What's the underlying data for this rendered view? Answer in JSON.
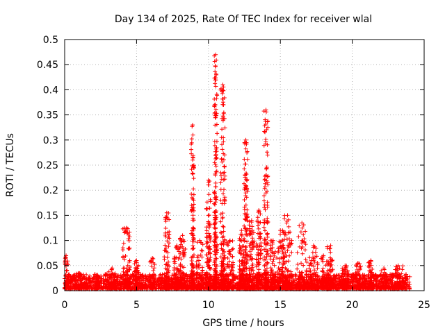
{
  "chart_data": {
    "type": "scatter",
    "title": "Day 134 of 2025, Rate Of TEC Index for receiver wlal",
    "xlabel": "GPS time / hours",
    "ylabel": "ROTI / TECUs",
    "xlim": [
      0,
      25
    ],
    "ylim": [
      0,
      0.5
    ],
    "xticks": [
      0,
      5,
      10,
      15,
      20,
      25
    ],
    "xtick_labels": [
      "0",
      "5",
      "10",
      "15",
      "20",
      "25"
    ],
    "yticks": [
      0,
      0.05,
      0.1,
      0.15,
      0.2,
      0.25,
      0.3,
      0.35,
      0.4,
      0.45,
      0.5
    ],
    "ytick_labels": [
      "0",
      "0.05",
      "0.1",
      "0.15",
      "0.2",
      "0.25",
      "0.3",
      "0.35",
      "0.4",
      "0.45",
      "0.5"
    ],
    "grid": true,
    "marker": "plus",
    "series_color": "#ff0000",
    "base_range": [
      0.0,
      24.0
    ],
    "baseline_max": 0.03,
    "clusters": [
      {
        "x": 0.1,
        "width": 0.3,
        "ymax": 0.07
      },
      {
        "x": 1.0,
        "width": 0.6,
        "ymax": 0.035
      },
      {
        "x": 2.3,
        "width": 0.3,
        "ymax": 0.03
      },
      {
        "x": 3.3,
        "width": 0.5,
        "ymax": 0.045
      },
      {
        "x": 4.3,
        "width": 0.5,
        "ymax": 0.125
      },
      {
        "x": 5.0,
        "width": 0.3,
        "ymax": 0.06
      },
      {
        "x": 6.1,
        "width": 0.4,
        "ymax": 0.065
      },
      {
        "x": 7.1,
        "width": 0.35,
        "ymax": 0.155
      },
      {
        "x": 7.8,
        "width": 0.4,
        "ymax": 0.09
      },
      {
        "x": 8.2,
        "width": 0.4,
        "ymax": 0.11
      },
      {
        "x": 8.9,
        "width": 0.2,
        "ymax": 0.33
      },
      {
        "x": 9.4,
        "width": 0.5,
        "ymax": 0.1
      },
      {
        "x": 10.0,
        "width": 0.3,
        "ymax": 0.22
      },
      {
        "x": 10.5,
        "width": 0.2,
        "ymax": 0.47
      },
      {
        "x": 11.0,
        "width": 0.3,
        "ymax": 0.41
      },
      {
        "x": 11.5,
        "width": 0.5,
        "ymax": 0.1
      },
      {
        "x": 12.3,
        "width": 0.3,
        "ymax": 0.12
      },
      {
        "x": 12.6,
        "width": 0.25,
        "ymax": 0.3
      },
      {
        "x": 13.0,
        "width": 0.35,
        "ymax": 0.14
      },
      {
        "x": 13.5,
        "width": 0.35,
        "ymax": 0.16
      },
      {
        "x": 14.0,
        "width": 0.3,
        "ymax": 0.36
      },
      {
        "x": 14.5,
        "width": 0.4,
        "ymax": 0.1
      },
      {
        "x": 15.0,
        "width": 0.5,
        "ymax": 0.12
      },
      {
        "x": 15.5,
        "width": 0.6,
        "ymax": 0.15
      },
      {
        "x": 16.5,
        "width": 0.7,
        "ymax": 0.135
      },
      {
        "x": 17.3,
        "width": 0.6,
        "ymax": 0.09
      },
      {
        "x": 18.0,
        "width": 0.5,
        "ymax": 0.07
      },
      {
        "x": 18.5,
        "width": 0.5,
        "ymax": 0.09
      },
      {
        "x": 19.5,
        "width": 0.4,
        "ymax": 0.05
      },
      {
        "x": 20.4,
        "width": 0.4,
        "ymax": 0.055
      },
      {
        "x": 21.3,
        "width": 0.4,
        "ymax": 0.06
      },
      {
        "x": 22.2,
        "width": 0.4,
        "ymax": 0.045
      },
      {
        "x": 23.2,
        "width": 0.7,
        "ymax": 0.05
      }
    ]
  }
}
